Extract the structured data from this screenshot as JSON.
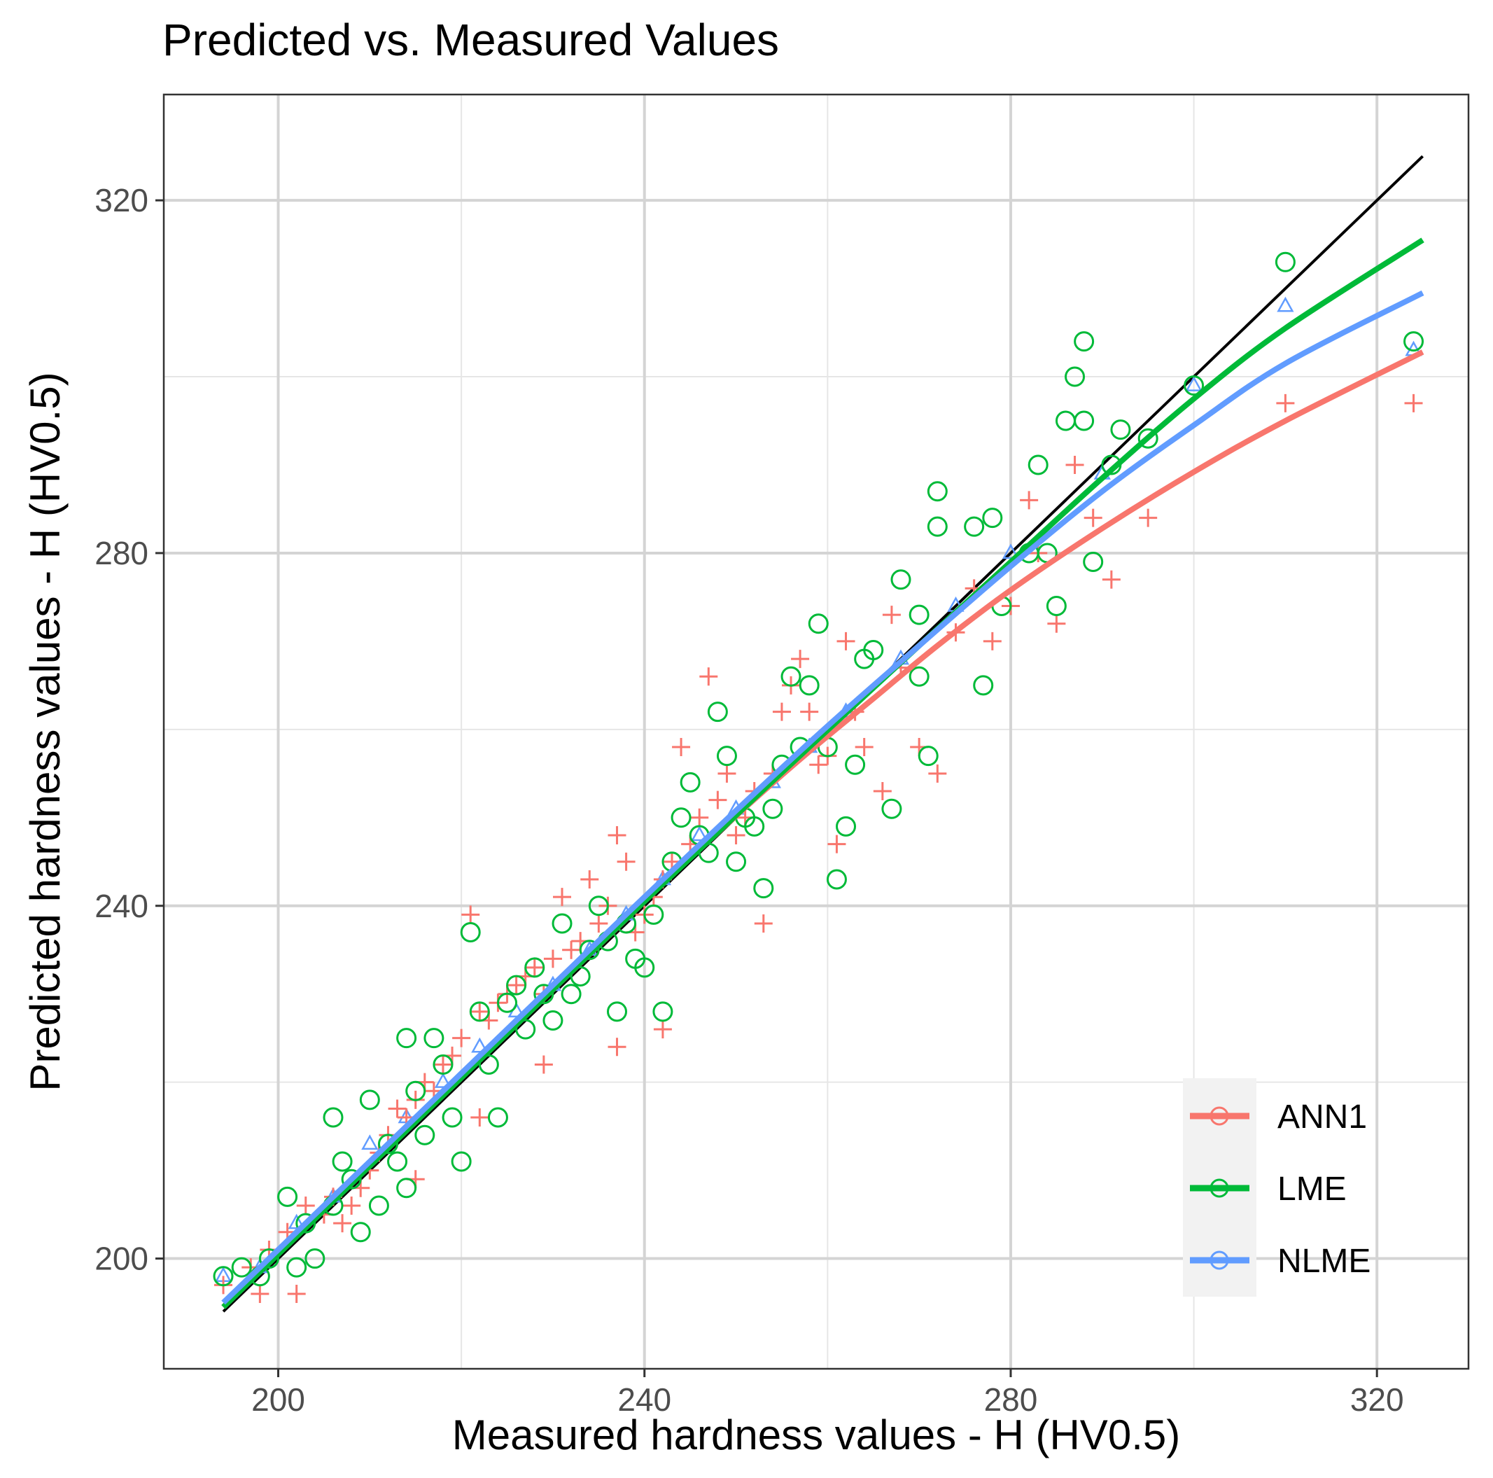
{
  "chart_data": {
    "type": "scatter",
    "title": "Predicted vs. Measured Values",
    "xlabel": "Measured hardness values - H (HV0.5)",
    "ylabel": "Predicted hardness values - H (HV0.5)",
    "xlim": [
      187.5,
      330
    ],
    "ylim": [
      187.5,
      332
    ],
    "xticks": [
      200,
      240,
      280,
      320
    ],
    "yticks": [
      200,
      240,
      280,
      320
    ],
    "xticks_minor": [
      220,
      260,
      300
    ],
    "yticks_minor": [
      220,
      260,
      300
    ],
    "grid": true,
    "legend_position": "bottom-right",
    "reference_line": {
      "name": "y = x",
      "color": "#000000",
      "x": [
        194,
        325
      ],
      "y": [
        194,
        325
      ]
    },
    "series": [
      {
        "name": "ANN1",
        "color": "#F8766D",
        "marker": "plus",
        "points": [
          [
            194,
            197
          ],
          [
            197,
            199
          ],
          [
            198,
            196
          ],
          [
            199,
            201
          ],
          [
            201,
            203
          ],
          [
            202,
            196
          ],
          [
            203,
            206
          ],
          [
            205,
            205
          ],
          [
            206,
            207
          ],
          [
            207,
            204
          ],
          [
            208,
            206
          ],
          [
            209,
            208
          ],
          [
            210,
            210
          ],
          [
            211,
            212
          ],
          [
            212,
            214
          ],
          [
            213,
            217
          ],
          [
            214,
            216
          ],
          [
            215,
            218
          ],
          [
            216,
            220
          ],
          [
            217,
            219
          ],
          [
            218,
            222
          ],
          [
            219,
            223
          ],
          [
            220,
            225
          ],
          [
            221,
            239
          ],
          [
            222,
            228
          ],
          [
            223,
            227
          ],
          [
            224,
            229
          ],
          [
            225,
            230
          ],
          [
            226,
            231
          ],
          [
            227,
            232
          ],
          [
            228,
            233
          ],
          [
            229,
            230
          ],
          [
            230,
            234
          ],
          [
            231,
            241
          ],
          [
            232,
            235
          ],
          [
            233,
            236
          ],
          [
            234,
            243
          ],
          [
            235,
            238
          ],
          [
            236,
            240
          ],
          [
            237,
            248
          ],
          [
            238,
            245
          ],
          [
            239,
            237
          ],
          [
            240,
            239
          ],
          [
            241,
            241
          ],
          [
            242,
            243
          ],
          [
            243,
            245
          ],
          [
            244,
            258
          ],
          [
            245,
            247
          ],
          [
            246,
            250
          ],
          [
            247,
            266
          ],
          [
            248,
            252
          ],
          [
            249,
            255
          ],
          [
            250,
            248
          ],
          [
            251,
            250
          ],
          [
            252,
            253
          ],
          [
            253,
            238
          ],
          [
            254,
            255
          ],
          [
            255,
            262
          ],
          [
            256,
            265
          ],
          [
            257,
            268
          ],
          [
            258,
            262
          ],
          [
            259,
            256
          ],
          [
            260,
            257
          ],
          [
            261,
            247
          ],
          [
            262,
            270
          ],
          [
            263,
            262
          ],
          [
            264,
            258
          ],
          [
            266,
            253
          ],
          [
            267,
            273
          ],
          [
            268,
            267
          ],
          [
            270,
            258
          ],
          [
            272,
            255
          ],
          [
            274,
            271
          ],
          [
            276,
            276
          ],
          [
            278,
            270
          ],
          [
            280,
            274
          ],
          [
            282,
            286
          ],
          [
            283,
            280
          ],
          [
            285,
            272
          ],
          [
            287,
            290
          ],
          [
            289,
            284
          ],
          [
            291,
            277
          ],
          [
            295,
            284
          ],
          [
            310,
            297
          ],
          [
            324,
            297
          ],
          [
            237,
            224
          ],
          [
            242,
            226
          ],
          [
            229,
            222
          ],
          [
            222,
            216
          ],
          [
            215,
            209
          ]
        ]
      },
      {
        "name": "LME",
        "color": "#00BA38",
        "marker": "circle",
        "points": [
          [
            194,
            198
          ],
          [
            196,
            199
          ],
          [
            198,
            198
          ],
          [
            199,
            200
          ],
          [
            201,
            207
          ],
          [
            202,
            199
          ],
          [
            203,
            204
          ],
          [
            204,
            200
          ],
          [
            206,
            206
          ],
          [
            206,
            216
          ],
          [
            207,
            211
          ],
          [
            208,
            209
          ],
          [
            209,
            203
          ],
          [
            210,
            218
          ],
          [
            211,
            206
          ],
          [
            212,
            213
          ],
          [
            213,
            211
          ],
          [
            214,
            225
          ],
          [
            214,
            208
          ],
          [
            215,
            219
          ],
          [
            216,
            214
          ],
          [
            217,
            225
          ],
          [
            218,
            222
          ],
          [
            219,
            216
          ],
          [
            220,
            211
          ],
          [
            221,
            237
          ],
          [
            222,
            228
          ],
          [
            223,
            222
          ],
          [
            224,
            216
          ],
          [
            225,
            229
          ],
          [
            226,
            231
          ],
          [
            227,
            226
          ],
          [
            228,
            233
          ],
          [
            229,
            230
          ],
          [
            230,
            227
          ],
          [
            231,
            238
          ],
          [
            232,
            230
          ],
          [
            233,
            232
          ],
          [
            234,
            235
          ],
          [
            235,
            240
          ],
          [
            236,
            236
          ],
          [
            237,
            228
          ],
          [
            238,
            238
          ],
          [
            239,
            234
          ],
          [
            240,
            233
          ],
          [
            241,
            239
          ],
          [
            242,
            228
          ],
          [
            243,
            245
          ],
          [
            244,
            250
          ],
          [
            245,
            254
          ],
          [
            246,
            248
          ],
          [
            247,
            246
          ],
          [
            248,
            262
          ],
          [
            249,
            257
          ],
          [
            250,
            245
          ],
          [
            251,
            250
          ],
          [
            252,
            249
          ],
          [
            253,
            242
          ],
          [
            254,
            251
          ],
          [
            255,
            256
          ],
          [
            256,
            266
          ],
          [
            257,
            258
          ],
          [
            258,
            265
          ],
          [
            259,
            272
          ],
          [
            260,
            258
          ],
          [
            261,
            243
          ],
          [
            262,
            249
          ],
          [
            263,
            256
          ],
          [
            264,
            268
          ],
          [
            265,
            269
          ],
          [
            267,
            251
          ],
          [
            268,
            277
          ],
          [
            270,
            273
          ],
          [
            270,
            266
          ],
          [
            271,
            257
          ],
          [
            272,
            283
          ],
          [
            272,
            287
          ],
          [
            276,
            283
          ],
          [
            277,
            265
          ],
          [
            278,
            284
          ],
          [
            279,
            274
          ],
          [
            282,
            280
          ],
          [
            283,
            290
          ],
          [
            284,
            280
          ],
          [
            285,
            274
          ],
          [
            286,
            295
          ],
          [
            287,
            300
          ],
          [
            288,
            304
          ],
          [
            288,
            295
          ],
          [
            289,
            279
          ],
          [
            291,
            290
          ],
          [
            292,
            294
          ],
          [
            295,
            293
          ],
          [
            300,
            299
          ],
          [
            310,
            313
          ],
          [
            324,
            304
          ]
        ]
      },
      {
        "name": "NLME",
        "color": "#619CFF",
        "marker": "triangle",
        "points": [
          [
            194,
            198
          ],
          [
            198,
            199
          ],
          [
            202,
            204
          ],
          [
            206,
            207
          ],
          [
            210,
            213
          ],
          [
            214,
            216
          ],
          [
            218,
            220
          ],
          [
            222,
            224
          ],
          [
            226,
            228
          ],
          [
            230,
            231
          ],
          [
            234,
            235
          ],
          [
            238,
            239
          ],
          [
            242,
            243
          ],
          [
            246,
            248
          ],
          [
            250,
            251
          ],
          [
            254,
            254
          ],
          [
            258,
            258
          ],
          [
            262,
            262
          ],
          [
            268,
            268
          ],
          [
            274,
            274
          ],
          [
            280,
            280
          ],
          [
            290,
            289
          ],
          [
            300,
            299
          ],
          [
            310,
            308
          ],
          [
            324,
            303
          ]
        ]
      }
    ],
    "smooth_curves": [
      {
        "name": "ANN1",
        "color": "#F8766D",
        "x": [
          194,
          220,
          240,
          250,
          258,
          265,
          272,
          280,
          290,
          300,
          310,
          325
        ],
        "y": [
          194.5,
          220.5,
          240.5,
          250.2,
          257.5,
          263.5,
          269.5,
          275.8,
          282.8,
          289.2,
          295.0,
          302.8
        ]
      },
      {
        "name": "LME",
        "color": "#00BA38",
        "x": [
          194,
          220,
          240,
          258,
          270,
          280,
          290,
          300,
          310,
          325
        ],
        "y": [
          194.5,
          220.5,
          240.5,
          258.0,
          269.5,
          279.0,
          288.5,
          297.5,
          305.5,
          315.5
        ]
      },
      {
        "name": "NLME",
        "color": "#619CFF",
        "x": [
          194,
          220,
          240,
          258,
          270,
          280,
          290,
          300,
          310,
          325
        ],
        "y": [
          195.0,
          221.0,
          241.0,
          258.5,
          269.5,
          278.5,
          287.0,
          294.5,
          301.5,
          309.5
        ]
      }
    ]
  },
  "legend": {
    "items": [
      {
        "label": "ANN1",
        "color": "#F8766D"
      },
      {
        "label": "LME",
        "color": "#00BA38"
      },
      {
        "label": "NLME",
        "color": "#619CFF"
      }
    ]
  }
}
